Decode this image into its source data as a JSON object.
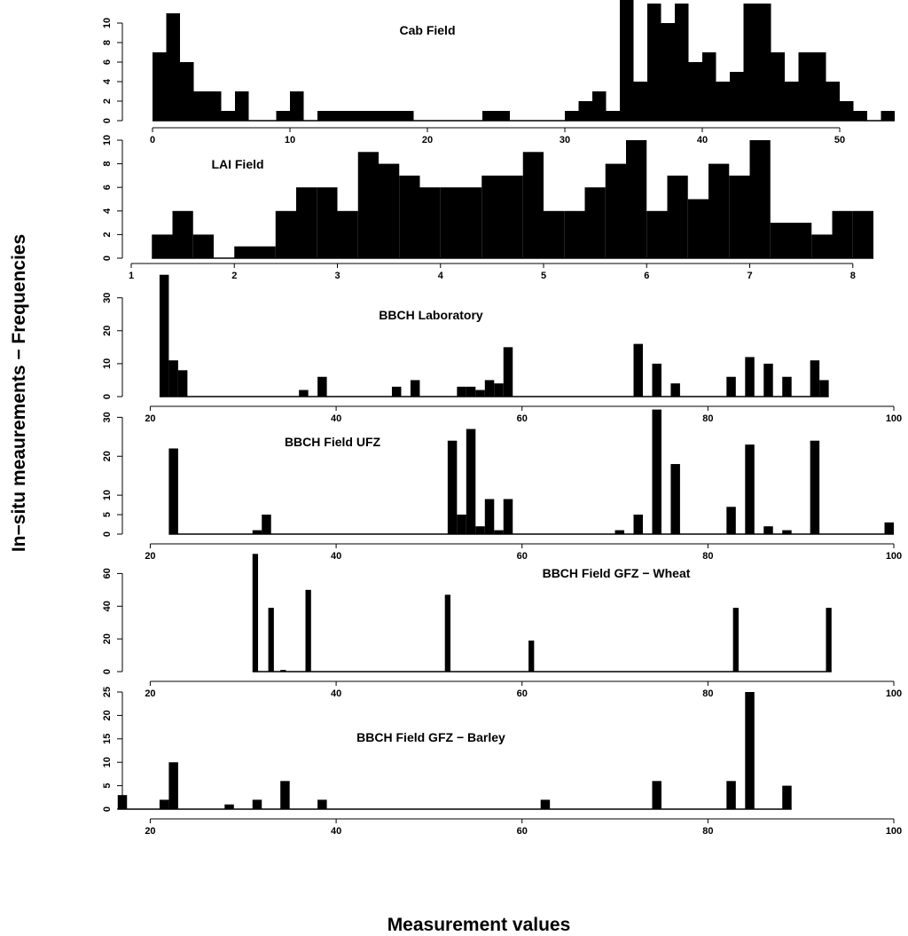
{
  "figure": {
    "ylabel": "In−situ meaurements − Frequencies",
    "xlabel": "Measurement values"
  },
  "chart_data": [
    {
      "type": "bar",
      "title": "Cab Field",
      "xlim": [
        0,
        54
      ],
      "ylim": [
        0,
        12
      ],
      "xticks": [
        0,
        10,
        20,
        30,
        40,
        50
      ],
      "yticks": [
        0,
        2,
        4,
        6,
        8,
        10
      ],
      "bin_width": 1,
      "bins_start": [
        0,
        1,
        2,
        3,
        4,
        5,
        6,
        7,
        8,
        9,
        10,
        11,
        12,
        13,
        14,
        15,
        16,
        17,
        18,
        19,
        20,
        21,
        22,
        23,
        24,
        25,
        26,
        27,
        28,
        29,
        30,
        31,
        32,
        33,
        34,
        35,
        36,
        37,
        38,
        39,
        40,
        41,
        42,
        43,
        44,
        45,
        46,
        47,
        48,
        49,
        50,
        51,
        52,
        53
      ],
      "values": [
        7,
        11,
        6,
        3,
        3,
        1,
        3,
        0,
        0,
        1,
        3,
        0,
        1,
        1,
        1,
        1,
        1,
        1,
        1,
        0,
        0,
        0,
        0,
        0,
        1,
        1,
        0,
        0,
        0,
        0,
        1,
        2,
        3,
        1,
        13,
        4,
        12,
        10,
        12,
        6,
        7,
        4,
        5,
        12,
        12,
        7,
        4,
        7,
        7,
        4,
        2,
        1,
        0,
        1
      ]
    },
    {
      "type": "bar",
      "title": "LAI Field",
      "xlim": [
        1,
        8.2
      ],
      "ylim": [
        0,
        10
      ],
      "xticks": [
        1,
        2,
        3,
        4,
        5,
        6,
        7,
        8
      ],
      "yticks": [
        0,
        2,
        4,
        6,
        8,
        10
      ],
      "bin_width": 0.2,
      "bins_start": [
        1.2,
        1.4,
        1.6,
        1.8,
        2.0,
        2.2,
        2.4,
        2.6,
        2.8,
        3.0,
        3.2,
        3.4,
        3.6,
        3.8,
        4.0,
        4.2,
        4.4,
        4.6,
        4.8,
        5.0,
        5.2,
        5.4,
        5.6,
        5.8,
        6.0,
        6.2,
        6.4,
        6.6,
        6.8,
        7.0,
        7.2,
        7.4,
        7.6,
        7.8,
        8.0
      ],
      "values": [
        2,
        4,
        2,
        0,
        1,
        1,
        4,
        6,
        6,
        4,
        9,
        8,
        7,
        6,
        6,
        6,
        7,
        7,
        9,
        4,
        4,
        6,
        8,
        10,
        4,
        7,
        5,
        8,
        7,
        10,
        3,
        3,
        2,
        4,
        4
      ]
    },
    {
      "type": "bar",
      "title": "BBCH Laboratory",
      "xlim": [
        17,
        100
      ],
      "ylim": [
        0,
        38
      ],
      "xticks": [
        20,
        40,
        60,
        80,
        100
      ],
      "yticks": [
        0,
        10,
        20,
        30
      ],
      "bin_width": 1,
      "bins_start": [
        21,
        22,
        23,
        36,
        38,
        46,
        48,
        53,
        54,
        55,
        56,
        57,
        58,
        72,
        74,
        76,
        82,
        84,
        86,
        88,
        91,
        92
      ],
      "values": [
        37,
        11,
        8,
        2,
        6,
        3,
        5,
        3,
        3,
        2,
        5,
        4,
        15,
        16,
        10,
        4,
        6,
        12,
        10,
        6,
        11,
        5
      ]
    },
    {
      "type": "bar",
      "title": "BBCH Field UFZ",
      "xlim": [
        17,
        100
      ],
      "ylim": [
        0,
        31
      ],
      "xticks": [
        20,
        40,
        60,
        80,
        100
      ],
      "yticks": [
        0,
        5,
        10,
        20,
        30
      ],
      "bin_width": 1,
      "bins_start": [
        22,
        31,
        32,
        52,
        53,
        54,
        55,
        56,
        57,
        58,
        70,
        72,
        74,
        76,
        82,
        84,
        86,
        88,
        91,
        99
      ],
      "values": [
        22,
        1,
        5,
        24,
        5,
        27,
        2,
        9,
        1,
        9,
        1,
        5,
        32,
        18,
        7,
        23,
        2,
        1,
        24,
        3
      ]
    },
    {
      "type": "bar",
      "title": "BBCH Field GFZ − Wheat",
      "xlim": [
        17,
        100
      ],
      "ylim": [
        0,
        70
      ],
      "xticks": [
        20,
        40,
        60,
        80,
        100
      ],
      "yticks": [
        0,
        20,
        40,
        60
      ],
      "bin_width": 0.6,
      "bins_start": [
        31,
        32.7,
        34,
        36.7,
        51.7,
        60.7,
        82.7,
        92.7
      ],
      "values": [
        72,
        39,
        1,
        50,
        47,
        19,
        39,
        39
      ]
    },
    {
      "type": "bar",
      "title": "BBCH Field GFZ − Barley",
      "xlim": [
        17,
        100
      ],
      "ylim": [
        0,
        25
      ],
      "xticks": [
        20,
        40,
        60,
        80,
        100
      ],
      "yticks": [
        0,
        5,
        10,
        15,
        20,
        25
      ],
      "bin_width": 1,
      "bins_start": [
        16.5,
        21,
        22,
        28,
        31,
        34,
        38,
        62,
        74,
        82,
        84,
        88
      ],
      "values": [
        3,
        2,
        10,
        1,
        2,
        6,
        2,
        2,
        6,
        6,
        25,
        5
      ]
    }
  ]
}
